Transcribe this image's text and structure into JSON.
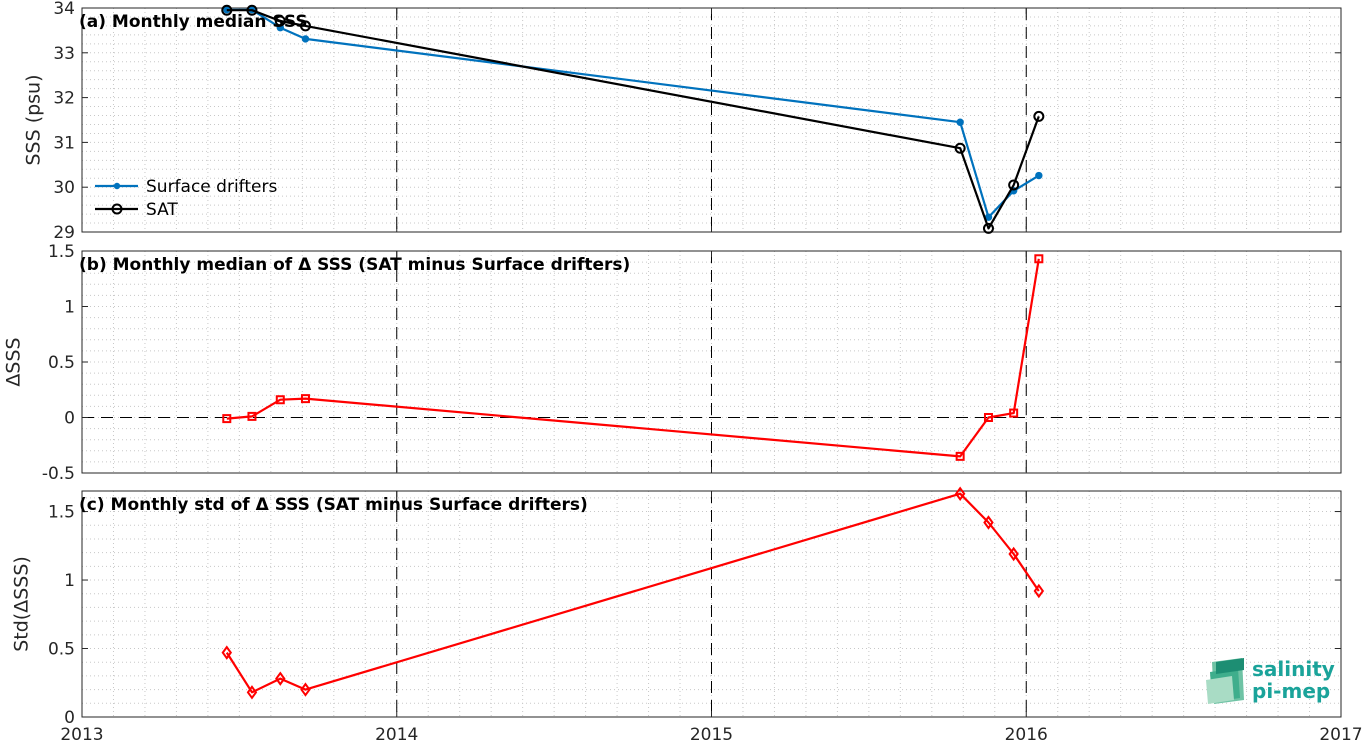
{
  "colors": {
    "drifters": "#0072bd",
    "sat": "#000000",
    "delta": "#ff0000",
    "grid": "#c8c8c8",
    "logo_primary": "#1aa39a"
  },
  "x_axis": {
    "range": [
      2013,
      2017
    ],
    "ticks": [
      2013,
      2014,
      2015,
      2016,
      2017
    ],
    "tick_labels": [
      "2013",
      "2014",
      "2015",
      "2016",
      "2017"
    ],
    "year_boundaries": [
      2014,
      2015,
      2016
    ]
  },
  "logo": {
    "line1": "salinity",
    "line2": "pi-mep",
    "icon": "salinity-pimep-logo-icon"
  },
  "chart_data": [
    {
      "type": "line",
      "title": "(a) Monthly median SSS",
      "xlabel": "",
      "ylabel": "SSS (psu)",
      "xlim": [
        2013,
        2017
      ],
      "ylim": [
        29,
        34
      ],
      "yticks": [
        29,
        30,
        31,
        32,
        33,
        34
      ],
      "ytick_labels": [
        "29",
        "30",
        "31",
        "32",
        "33",
        "34"
      ],
      "grid": true,
      "legend": "bottom-left",
      "series": [
        {
          "name": "Surface drifters",
          "marker": "dot",
          "color": "#0072bd",
          "x": [
            2013.46,
            2013.54,
            2013.63,
            2013.71,
            2015.79,
            2015.88,
            2015.96,
            2016.04
          ],
          "y": [
            33.96,
            33.96,
            33.56,
            33.31,
            31.45,
            29.33,
            29.92,
            30.26
          ]
        },
        {
          "name": "SAT",
          "marker": "circle",
          "color": "#000000",
          "x": [
            2013.46,
            2013.54,
            2013.63,
            2013.71,
            2015.79,
            2015.88,
            2015.96,
            2016.04
          ],
          "y": [
            33.95,
            33.95,
            33.71,
            33.6,
            30.87,
            29.08,
            30.05,
            31.58
          ]
        }
      ]
    },
    {
      "type": "line",
      "title": "(b) Monthly median of Δ SSS (SAT minus Surface drifters)",
      "xlabel": "",
      "ylabel": "ΔSSS",
      "xlim": [
        2013,
        2017
      ],
      "ylim": [
        -0.5,
        1.5
      ],
      "yticks": [
        -0.5,
        0,
        0.5,
        1,
        1.5
      ],
      "ytick_labels": [
        "-0.5",
        "0",
        "0.5",
        "1",
        "1.5"
      ],
      "zero_line": true,
      "grid": true,
      "series": [
        {
          "marker": "square",
          "color": "#ff0000",
          "x": [
            2013.46,
            2013.54,
            2013.63,
            2013.71,
            2015.79,
            2015.88,
            2015.96,
            2016.04
          ],
          "y": [
            -0.01,
            0.01,
            0.16,
            0.17,
            -0.35,
            0.0,
            0.04,
            1.43
          ]
        }
      ]
    },
    {
      "type": "line",
      "title": "(c) Monthly std of Δ SSS (SAT minus Surface drifters)",
      "xlabel": "",
      "ylabel": "Std(ΔSSS)",
      "xlim": [
        2013,
        2017
      ],
      "ylim": [
        0,
        1.65
      ],
      "yticks": [
        0,
        0.5,
        1,
        1.5
      ],
      "ytick_labels": [
        "0",
        "0.5",
        "1",
        "1.5"
      ],
      "grid": true,
      "series": [
        {
          "marker": "diamond",
          "color": "#ff0000",
          "x": [
            2013.46,
            2013.54,
            2013.63,
            2013.71,
            2015.79,
            2015.88,
            2015.96,
            2016.04
          ],
          "y": [
            0.47,
            0.18,
            0.28,
            0.2,
            1.63,
            1.42,
            1.19,
            0.92
          ]
        }
      ]
    }
  ]
}
